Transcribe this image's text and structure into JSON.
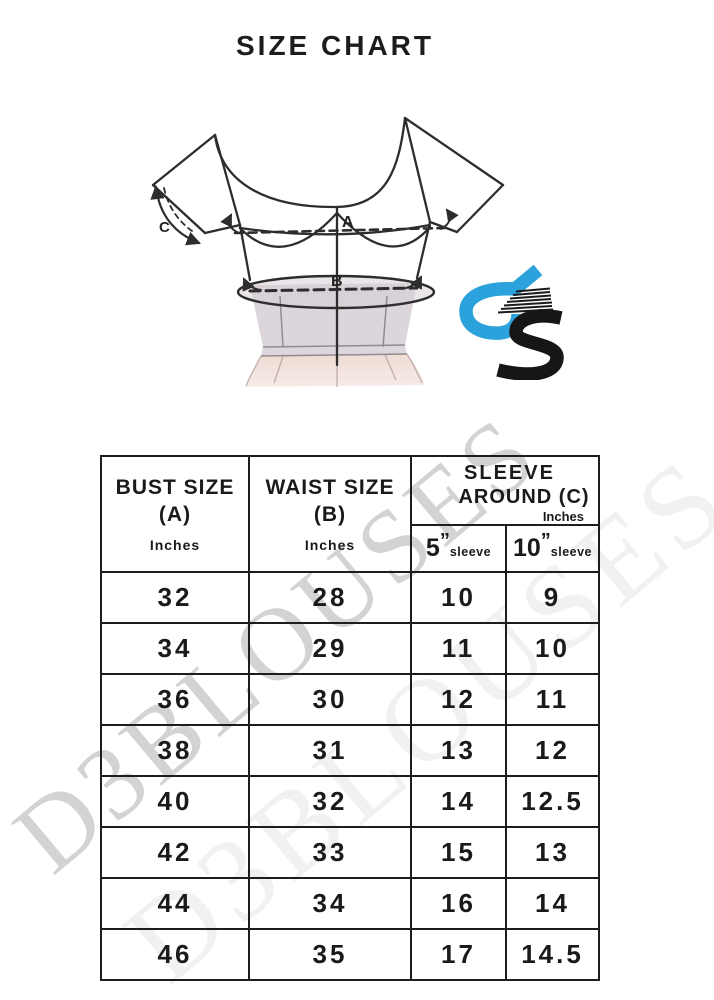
{
  "page": {
    "title": "SIZE CHART"
  },
  "watermark": {
    "text": "D3BLOUSES"
  },
  "diagram": {
    "label_bust": "A",
    "label_waist": "B",
    "label_sleeve": "C",
    "logo": {
      "name": "D3",
      "blue": "#2BA2DB",
      "black": "#161616"
    }
  },
  "table": {
    "headers": {
      "bust": {
        "line1": "BUST SIZE",
        "line2": "(A)",
        "unit": "Inches"
      },
      "waist": {
        "line1": "WAIST SIZE",
        "line2": "(B)",
        "unit": "Inches"
      },
      "sleeve": {
        "line1": "SLEEVE",
        "line2": "AROUND (C)",
        "unit": "Inches",
        "sub5": {
          "num": "5",
          "quote": "”",
          "label": "sleeve"
        },
        "sub10": {
          "num": "10",
          "quote": "”",
          "label": "sleeve"
        }
      }
    },
    "rows": [
      [
        "32",
        "28",
        "10",
        "9"
      ],
      [
        "34",
        "29",
        "11",
        "10"
      ],
      [
        "36",
        "30",
        "12",
        "11"
      ],
      [
        "38",
        "31",
        "13",
        "12"
      ],
      [
        "40",
        "32",
        "14",
        "12.5"
      ],
      [
        "42",
        "33",
        "15",
        "13"
      ],
      [
        "44",
        "34",
        "16",
        "14"
      ],
      [
        "46",
        "35",
        "17",
        "14.5"
      ]
    ]
  },
  "chart_data": {
    "type": "table",
    "title": "SIZE CHART",
    "columns": [
      "BUST SIZE (A) Inches",
      "WAIST SIZE (B) Inches",
      "SLEEVE AROUND (C) Inches - 5\" sleeve",
      "SLEEVE AROUND (C) Inches - 10\" sleeve"
    ],
    "rows": [
      [
        32,
        28,
        10,
        9
      ],
      [
        34,
        29,
        11,
        10
      ],
      [
        36,
        30,
        12,
        11
      ],
      [
        38,
        31,
        13,
        12
      ],
      [
        40,
        32,
        14,
        12.5
      ],
      [
        42,
        33,
        15,
        13
      ],
      [
        44,
        34,
        16,
        14
      ],
      [
        46,
        35,
        17,
        14.5
      ]
    ]
  }
}
